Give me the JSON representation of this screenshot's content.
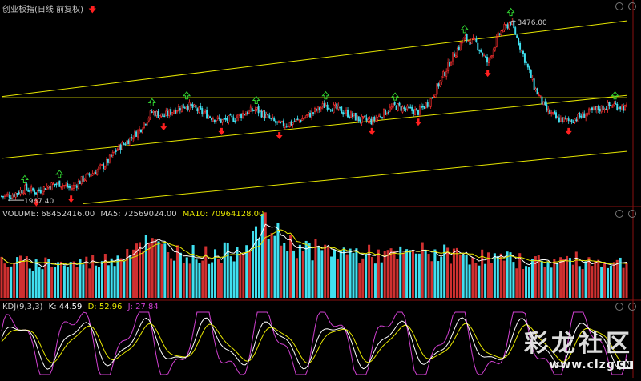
{
  "header": {
    "title": "创业板指(日线 前复权)",
    "arrow_icon": "red-down-arrow-icon"
  },
  "price_panel": {
    "high_label": "3476.00",
    "low_label": "1967.40"
  },
  "volume_panel": {
    "name": "VOLUME: 68452416.00",
    "ma5": "MA5: 72569024.00",
    "ma10": "MA10: 70964128.00",
    "colors": {
      "name": "#cccccc",
      "ma5": "#cccccc",
      "ma10": "#e6e600"
    }
  },
  "kdj_panel": {
    "name": "KDJ(9,3,3)",
    "k": "K: 44.59",
    "d": "D: 52.96",
    "j": "J: 27.84",
    "colors": {
      "k": "#ffffff",
      "d": "#e6e600",
      "j": "#d040d0"
    }
  },
  "watermark": {
    "cn": "彩龙社区",
    "url": "www.clzg",
    "badge": "CN"
  },
  "chart_data": [
    {
      "type": "candlestick",
      "title": "创业板指(日线 前复权)",
      "annotations": [
        {
          "label": "3476.00",
          "kind": "high"
        },
        {
          "label": "1967.40",
          "kind": "low"
        }
      ],
      "ylim": [
        1900,
        3550
      ],
      "close_approx": [
        1975,
        1990,
        2040,
        2010,
        2060,
        2085,
        2040,
        2120,
        2180,
        2250,
        2380,
        2460,
        2555,
        2700,
        2660,
        2720,
        2760,
        2710,
        2660,
        2620,
        2640,
        2690,
        2720,
        2650,
        2585,
        2600,
        2640,
        2700,
        2760,
        2720,
        2680,
        2630,
        2620,
        2690,
        2750,
        2720,
        2700,
        2790,
        2980,
        3180,
        3330,
        3290,
        3120,
        3370,
        3476,
        3210,
        2920,
        2720,
        2640,
        2620,
        2660,
        2700,
        2740,
        2760,
        2730
      ],
      "trendlines": [
        {
          "name": "upper channel",
          "from": [
            0,
            2830
          ],
          "to": [
            54,
            3480
          ]
        },
        {
          "name": "horizontal",
          "from": [
            0,
            2820
          ],
          "to": [
            54,
            2820
          ]
        },
        {
          "name": "middle channel",
          "from": [
            0,
            2300
          ],
          "to": [
            54,
            2840
          ]
        },
        {
          "name": "lower channel",
          "from": [
            7,
            1910
          ],
          "to": [
            54,
            2360
          ]
        }
      ],
      "colors": {
        "up": "#ff3030",
        "down": "#40e0f0",
        "trendline": "#e6e600",
        "buy_signal": "#30d030",
        "sell_signal": "#ff2020"
      }
    },
    {
      "type": "bar",
      "title": "VOLUME",
      "legend": [
        "VOLUME: 68452416.00",
        "MA5: 72569024.00",
        "MA10: 70964128.00"
      ],
      "values_approx": [
        55,
        53,
        52,
        50,
        54,
        52,
        50,
        53,
        55,
        57,
        63,
        75,
        85,
        79,
        73,
        70,
        67,
        65,
        64,
        67,
        70,
        82,
        98,
        108,
        90,
        80,
        75,
        72,
        70,
        69,
        68,
        66,
        65,
        64,
        63,
        65,
        70,
        68,
        66,
        65,
        64,
        62,
        60,
        58,
        57,
        56,
        55,
        54,
        55,
        57,
        56,
        55,
        54,
        53,
        52
      ],
      "value_unit_note_excluded": true,
      "colors": {
        "up": "#d03030",
        "down": "#40e0f0",
        "ma5": "#ffffff",
        "ma10": "#e6e600"
      }
    },
    {
      "type": "line",
      "title": "KDJ(9,3,3)",
      "series": [
        {
          "name": "K",
          "last": 44.59
        },
        {
          "name": "D",
          "last": 52.96
        },
        {
          "name": "J",
          "last": 27.84
        }
      ],
      "ylim": [
        -10,
        110
      ]
    }
  ]
}
